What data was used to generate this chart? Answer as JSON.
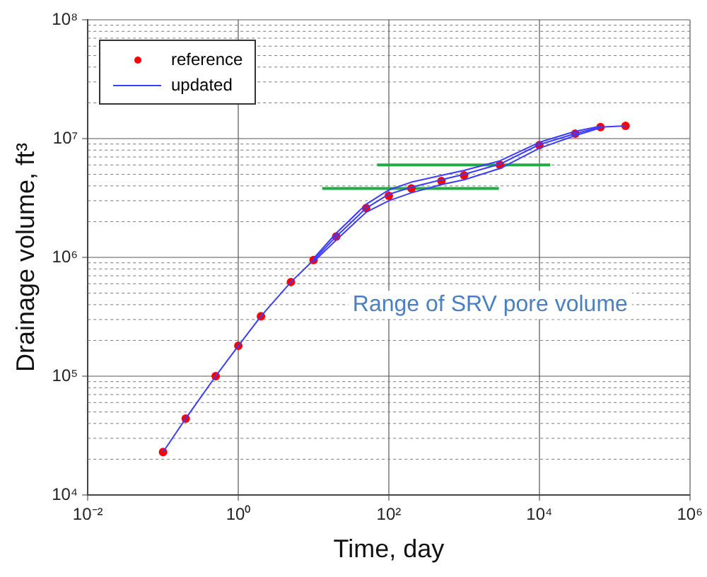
{
  "chart_data": {
    "type": "scatter",
    "xlabel": "Time, day",
    "ylabel": "Drainage volume, ft³",
    "log": "xy",
    "grid": true,
    "legend": "top left",
    "xlim": [
      0.01,
      1000000
    ],
    "ylim": [
      10000,
      100000000
    ],
    "xticks": [
      {
        "value": 0.01,
        "label": "10⁻²"
      },
      {
        "value": 1,
        "label": "10⁰"
      },
      {
        "value": 100,
        "label": "10²"
      },
      {
        "value": 10000,
        "label": "10⁴"
      },
      {
        "value": 1000000,
        "label": "10⁶"
      }
    ],
    "yticks": [
      {
        "value": 10000,
        "label": "10⁴"
      },
      {
        "value": 100000,
        "label": "10⁵"
      },
      {
        "value": 1000000,
        "label": "10⁶"
      },
      {
        "value": 10000000,
        "label": "10⁷"
      },
      {
        "value": 100000000,
        "label": "10⁸"
      }
    ],
    "annotations": [
      "Range of SRV pore volume"
    ],
    "series": [
      {
        "name": "updated",
        "type": "line",
        "color": "#3c3cff",
        "x": [
          0.1,
          0.2,
          0.5,
          1,
          2,
          5,
          10,
          20,
          50,
          100,
          200,
          500,
          1000,
          3000,
          10000,
          30000,
          65000,
          140000
        ],
        "values": [
          23000,
          44000,
          100000,
          180000,
          320000,
          620000,
          950000,
          1500000,
          2600000,
          3400000,
          3900000,
          4500000,
          5000000,
          6100000,
          8900000,
          11000000,
          12500000,
          12800000
        ]
      },
      {
        "type": "line",
        "color": "#3c3cff",
        "x": [
          10,
          20,
          50,
          100,
          200,
          500,
          1000,
          3000,
          10000,
          30000,
          65000
        ],
        "values": [
          980000,
          1600000,
          2800000,
          3700000,
          4300000,
          4900000,
          5400000,
          6500000,
          9300000,
          11500000,
          12700000
        ]
      },
      {
        "type": "line",
        "color": "#3c3cff",
        "x": [
          10,
          20,
          50,
          100,
          200,
          500,
          1000,
          3000,
          10000,
          30000,
          65000
        ],
        "values": [
          920000,
          1400000,
          2400000,
          3000000,
          3500000,
          4100000,
          4500000,
          5600000,
          8300000,
          10600000,
          12300000
        ]
      },
      {
        "name": "reference",
        "marker": "circle",
        "color": "#ff0000",
        "x": [
          0.1,
          0.2,
          0.5,
          1,
          2,
          5,
          10,
          20,
          50,
          100,
          200,
          500,
          1000,
          3000,
          10000,
          30000,
          65000,
          140000
        ],
        "values": [
          23000,
          44000,
          100000,
          180000,
          320000,
          620000,
          950000,
          1500000,
          2600000,
          3300000,
          3800000,
          4400000,
          4900000,
          6000000,
          8800000,
          11000000,
          12500000,
          12800000
        ]
      },
      {
        "type": "line",
        "color": "#22aa44",
        "x": [
          70,
          14000
        ],
        "values": [
          6000000,
          6000000
        ]
      },
      {
        "type": "line",
        "color": "#22aa44",
        "x": [
          13,
          2900
        ],
        "values": [
          3800000,
          3800000
        ]
      }
    ]
  }
}
